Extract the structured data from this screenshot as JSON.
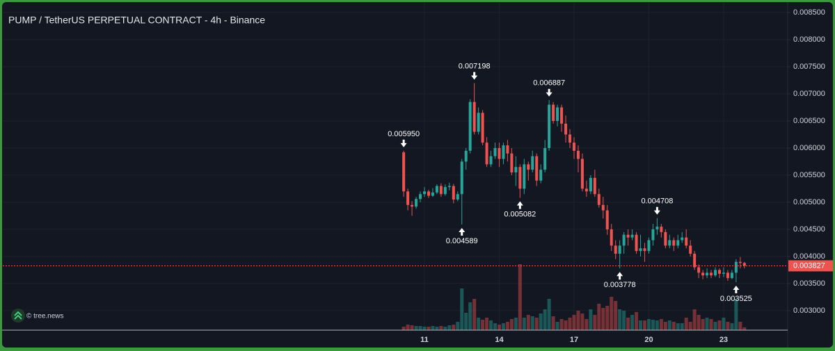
{
  "chart_data": {
    "type": "candlestick",
    "title": "PUMP / TetherUS PERPETUAL CONTRACT - 4h - Binance",
    "watermark": "© tree.news",
    "up_color": "#26a69a",
    "down_color": "#ef5350",
    "grid": true,
    "x": [
      10.167,
      10.333,
      10.5,
      10.667,
      10.833,
      11,
      11.167,
      11.333,
      11.5,
      11.667,
      11.833,
      12,
      12.167,
      12.333,
      12.5,
      12.667,
      12.833,
      13,
      13.167,
      13.333,
      13.5,
      13.667,
      13.833,
      14,
      14.167,
      14.333,
      14.5,
      14.667,
      14.833,
      15,
      15.167,
      15.333,
      15.5,
      15.667,
      15.833,
      16,
      16.167,
      16.333,
      16.5,
      16.667,
      16.833,
      17,
      17.167,
      17.333,
      17.5,
      17.667,
      17.833,
      18,
      18.167,
      18.333,
      18.5,
      18.667,
      18.833,
      19,
      19.167,
      19.333,
      19.5,
      19.667,
      19.833,
      20,
      20.167,
      20.333,
      20.5,
      20.667,
      20.833,
      21,
      21.167,
      21.333,
      21.5,
      21.667,
      21.833,
      22,
      22.167,
      22.333,
      22.5,
      22.667,
      22.833,
      23,
      23.167,
      23.333,
      23.5,
      23.667,
      23.833
    ],
    "open": [
      0.00592,
      0.0052,
      0.00495,
      0.00492,
      0.00506,
      0.00515,
      0.0052,
      0.00512,
      0.00518,
      0.0053,
      0.00515,
      0.00528,
      0.0053,
      0.00505,
      0.00515,
      0.00575,
      0.00595,
      0.00685,
      0.0063,
      0.00665,
      0.0061,
      0.0057,
      0.00585,
      0.006,
      0.0058,
      0.00605,
      0.0059,
      0.00555,
      0.00565,
      0.00525,
      0.0057,
      0.0056,
      0.00585,
      0.0054,
      0.0056,
      0.006,
      0.0068,
      0.0065,
      0.00675,
      0.00645,
      0.00625,
      0.0061,
      0.00595,
      0.0058,
      0.00525,
      0.0052,
      0.00545,
      0.00515,
      0.00495,
      0.00485,
      0.0045,
      0.0042,
      0.00405,
      0.0042,
      0.0044,
      0.00435,
      0.0044,
      0.0041,
      0.00415,
      0.0041,
      0.0043,
      0.0045,
      0.00455,
      0.00445,
      0.0042,
      0.0043,
      0.0042,
      0.0043,
      0.00435,
      0.0042,
      0.00405,
      0.0038,
      0.0037,
      0.00365,
      0.0037,
      0.00365,
      0.00375,
      0.00368,
      0.0037,
      0.0036,
      0.0037,
      0.0039,
      0.00388
    ],
    "high": [
      0.00595,
      0.00525,
      0.00502,
      0.0051,
      0.0052,
      0.00528,
      0.00523,
      0.00526,
      0.00533,
      0.00535,
      0.00533,
      0.00536,
      0.00534,
      0.0052,
      0.0058,
      0.006,
      0.0069,
      0.007198,
      0.00675,
      0.0067,
      0.0062,
      0.00595,
      0.0061,
      0.0061,
      0.0061,
      0.00615,
      0.006,
      0.00585,
      0.0057,
      0.0058,
      0.00575,
      0.00595,
      0.0059,
      0.0057,
      0.00615,
      0.006887,
      0.00685,
      0.0068,
      0.0068,
      0.0066,
      0.00635,
      0.0062,
      0.00605,
      0.0059,
      0.0054,
      0.0055,
      0.0056,
      0.00525,
      0.0051,
      0.00495,
      0.0046,
      0.0043,
      0.0043,
      0.00445,
      0.0045,
      0.0045,
      0.00445,
      0.0044,
      0.00425,
      0.00435,
      0.0046,
      0.004708,
      0.0046,
      0.0045,
      0.0044,
      0.00435,
      0.0044,
      0.00445,
      0.0045,
      0.0043,
      0.0041,
      0.00385,
      0.00375,
      0.00378,
      0.00375,
      0.0038,
      0.00378,
      0.0038,
      0.00375,
      0.00375,
      0.00395,
      0.00399,
      0.0039
    ],
    "low": [
      0.0051,
      0.00485,
      0.00475,
      0.00488,
      0.005,
      0.0051,
      0.00508,
      0.0051,
      0.00515,
      0.0051,
      0.00512,
      0.00522,
      0.00498,
      0.00502,
      0.004589,
      0.0056,
      0.0059,
      0.00625,
      0.00625,
      0.00605,
      0.00565,
      0.00565,
      0.0058,
      0.00565,
      0.0057,
      0.00575,
      0.0055,
      0.0053,
      0.005082,
      0.00515,
      0.0054,
      0.00555,
      0.0053,
      0.00535,
      0.00555,
      0.00595,
      0.00645,
      0.0064,
      0.0063,
      0.0061,
      0.006,
      0.0058,
      0.00555,
      0.0052,
      0.0051,
      0.00515,
      0.0051,
      0.0049,
      0.0047,
      0.0044,
      0.0041,
      0.00395,
      0.003778,
      0.00405,
      0.0042,
      0.0043,
      0.00405,
      0.004,
      0.0039,
      0.00405,
      0.0042,
      0.0044,
      0.00435,
      0.00415,
      0.00415,
      0.0041,
      0.00415,
      0.00425,
      0.00415,
      0.004,
      0.00375,
      0.0036,
      0.00358,
      0.0036,
      0.0036,
      0.00362,
      0.0036,
      0.00362,
      0.00355,
      0.00358,
      0.003525,
      0.00378,
      0.00378
    ],
    "close": [
      0.0052,
      0.00495,
      0.00492,
      0.00506,
      0.00515,
      0.0052,
      0.00512,
      0.00518,
      0.0053,
      0.00515,
      0.00528,
      0.0053,
      0.00505,
      0.00515,
      0.00575,
      0.00595,
      0.00685,
      0.0063,
      0.00665,
      0.0061,
      0.0057,
      0.00585,
      0.006,
      0.0058,
      0.00605,
      0.0059,
      0.00555,
      0.00565,
      0.00525,
      0.0057,
      0.0056,
      0.00585,
      0.0054,
      0.0056,
      0.006,
      0.0068,
      0.0065,
      0.00675,
      0.00645,
      0.00625,
      0.0061,
      0.00595,
      0.0058,
      0.00525,
      0.0052,
      0.00545,
      0.00515,
      0.00495,
      0.00485,
      0.0045,
      0.0042,
      0.00405,
      0.0042,
      0.0044,
      0.00435,
      0.0044,
      0.0041,
      0.00415,
      0.0041,
      0.0043,
      0.0045,
      0.00455,
      0.00445,
      0.0042,
      0.0043,
      0.0042,
      0.0043,
      0.00435,
      0.0042,
      0.00405,
      0.0038,
      0.0037,
      0.00365,
      0.0037,
      0.00365,
      0.00375,
      0.00368,
      0.0037,
      0.0036,
      0.0037,
      0.0039,
      0.00388,
      0.003827
    ],
    "volume": [
      5,
      8,
      7,
      6,
      6,
      5,
      5,
      6,
      5,
      6,
      5,
      7,
      8,
      12,
      60,
      25,
      40,
      45,
      18,
      15,
      18,
      14,
      10,
      8,
      10,
      12,
      16,
      18,
      95,
      18,
      22,
      20,
      18,
      24,
      30,
      45,
      20,
      12,
      16,
      14,
      18,
      22,
      28,
      24,
      16,
      30,
      22,
      38,
      32,
      35,
      48,
      42,
      30,
      28,
      18,
      22,
      26,
      14,
      14,
      16,
      15,
      14,
      16,
      12,
      14,
      12,
      10,
      10,
      18,
      12,
      30,
      22,
      16,
      18,
      16,
      12,
      14,
      18,
      12,
      10,
      45,
      12,
      4
    ],
    "xlim": [
      -5.913,
      25.569
    ],
    "xticks": [
      11,
      14,
      17,
      20,
      23
    ],
    "ylim": [
      0.00264,
      0.00868
    ],
    "yticks": [
      {
        "value": 0.003,
        "label": "0.003000"
      },
      {
        "value": 0.0035,
        "label": "0.003500"
      },
      {
        "value": 0.004,
        "label": "0.004000"
      },
      {
        "value": 0.0045,
        "label": "0.004500"
      },
      {
        "value": 0.005,
        "label": "0.005000"
      },
      {
        "value": 0.0055,
        "label": "0.005500"
      },
      {
        "value": 0.006,
        "label": "0.006000"
      },
      {
        "value": 0.0065,
        "label": "0.006500"
      },
      {
        "value": 0.007,
        "label": "0.007000"
      },
      {
        "value": 0.0075,
        "label": "0.007500"
      },
      {
        "value": 0.008,
        "label": "0.008000"
      },
      {
        "value": 0.0085,
        "label": "0.008500"
      }
    ],
    "last_price": {
      "value": 0.003827,
      "label": "0.003827"
    },
    "annotations": [
      {
        "x": 10.167,
        "value": 0.00595,
        "label": "0.005950",
        "position": "above"
      },
      {
        "x": 12.5,
        "value": 0.004589,
        "label": "0.004589",
        "position": "below"
      },
      {
        "x": 13,
        "value": 0.007198,
        "label": "0.007198",
        "position": "above"
      },
      {
        "x": 14.833,
        "value": 0.005082,
        "label": "0.005082",
        "position": "below"
      },
      {
        "x": 16,
        "value": 0.006887,
        "label": "0.006887",
        "position": "above"
      },
      {
        "x": 18.833,
        "value": 0.003778,
        "label": "0.003778",
        "position": "below"
      },
      {
        "x": 20.333,
        "value": 0.004708,
        "label": "0.004708",
        "position": "above"
      },
      {
        "x": 23.5,
        "value": 0.003525,
        "label": "0.003525",
        "position": "below"
      }
    ]
  }
}
